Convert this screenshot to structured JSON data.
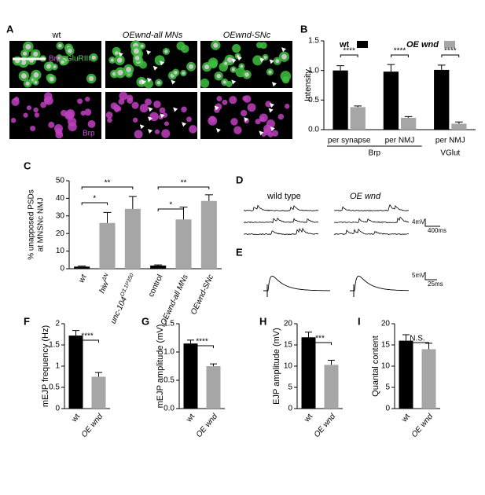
{
  "panel_labels": [
    "A",
    "B",
    "C",
    "D",
    "E",
    "F",
    "G",
    "H",
    "I"
  ],
  "panel_a": {
    "columns": [
      "wt",
      "OEwnd-all MNs",
      "OEwnd-SNc"
    ],
    "top_labels": [
      "Brp",
      "GluRIII"
    ],
    "bottom_label": "Brp"
  },
  "panel_d": {
    "columns": [
      "wild type",
      "OE wnd"
    ],
    "scale_v": "4mV",
    "scale_t": "400ms"
  },
  "panel_e": {
    "scale_v": "5mV",
    "scale_t": "25ms"
  },
  "chart_data": [
    {
      "type": "grouped-bar",
      "ylabel": "Intensity",
      "categories": [
        "per synapse",
        "per NMJ",
        "per NMJ"
      ],
      "group_labels": [
        "Brp",
        "VGlut"
      ],
      "series": [
        {
          "name": "wt",
          "color": "#000000",
          "values": [
            1.0,
            0.98,
            1.01
          ],
          "errors": [
            0.08,
            0.12,
            0.08
          ]
        },
        {
          "name": "OE wnd",
          "color": "#a6a6a6",
          "values": [
            0.38,
            0.2,
            0.1
          ],
          "errors": [
            0.02,
            0.02,
            0.03
          ]
        }
      ],
      "ylim": [
        0,
        1.5
      ],
      "yticks": [
        {
          "value": 0,
          "label": "0.0"
        },
        {
          "value": 0.5,
          "label": "0.5"
        },
        {
          "value": 1,
          "label": "1.0"
        },
        {
          "value": 1.5,
          "label": "1.5"
        }
      ],
      "significance": [
        "****",
        "****",
        "****"
      ]
    },
    {
      "type": "bar",
      "ylabel": [
        "% unapposed PSDs",
        "at MNSNc NMJ"
      ],
      "categories": [
        "wt",
        "hiw",
        "unc-104",
        "control",
        "OEwnd-all MNs",
        "OEwnd-SNc"
      ],
      "superscripts": [
        null,
        "ΔN",
        "O3.1P350",
        null,
        null,
        null
      ],
      "values": [
        1.2,
        26,
        34,
        1.8,
        28,
        38.5
      ],
      "errors": [
        0.3,
        6,
        7,
        0.4,
        7,
        3.5
      ],
      "colors": [
        "#000000",
        "#a6a6a6",
        "#a6a6a6",
        "#000000",
        "#a6a6a6",
        "#a6a6a6"
      ],
      "ylim": [
        0,
        50
      ],
      "yticks": [
        0,
        10,
        20,
        30,
        40,
        50
      ],
      "significance": [
        "*",
        "**",
        "*",
        "**"
      ]
    },
    {
      "type": "bar",
      "ylabel": "mEJP frequency (Hz)",
      "categories": [
        "wt",
        "OE wnd"
      ],
      "values": [
        1.72,
        0.75
      ],
      "errors": [
        0.12,
        0.1
      ],
      "colors": [
        "#000000",
        "#a6a6a6"
      ],
      "ylim": [
        0,
        2
      ],
      "yticks": [
        0,
        0.5,
        1,
        1.5,
        2
      ],
      "significance": [
        "****"
      ]
    },
    {
      "type": "bar",
      "ylabel": "mEJP amplitude (mV)",
      "categories": [
        "wt",
        "OE wnd"
      ],
      "values": [
        1.15,
        0.75
      ],
      "errors": [
        0.06,
        0.04
      ],
      "colors": [
        "#000000",
        "#a6a6a6"
      ],
      "ylim": [
        0,
        1.5
      ],
      "yticks": [
        {
          "value": 0,
          "label": "0.0"
        },
        {
          "value": 0.5,
          "label": "0.5"
        },
        {
          "value": 1,
          "label": "1.0"
        },
        {
          "value": 1.5,
          "label": "1.5"
        }
      ],
      "significance": [
        "****"
      ]
    },
    {
      "type": "bar",
      "ylabel": "EJP amplitude (mV)",
      "categories": [
        "wt",
        "OE wnd"
      ],
      "values": [
        16.8,
        10.3
      ],
      "errors": [
        1.2,
        1.1
      ],
      "colors": [
        "#000000",
        "#a6a6a6"
      ],
      "ylim": [
        0,
        20
      ],
      "yticks": [
        0,
        5,
        10,
        15,
        20
      ],
      "significance": [
        "***"
      ]
    },
    {
      "type": "bar",
      "ylabel": "Quantal content",
      "categories": [
        "wt",
        "OE wnd"
      ],
      "values": [
        16,
        14
      ],
      "errors": [
        1.4,
        1.4
      ],
      "colors": [
        "#000000",
        "#a6a6a6"
      ],
      "ylim": [
        0,
        20
      ],
      "yticks": [
        0,
        5,
        10,
        15,
        20
      ],
      "significance": [
        "N.S."
      ]
    }
  ]
}
